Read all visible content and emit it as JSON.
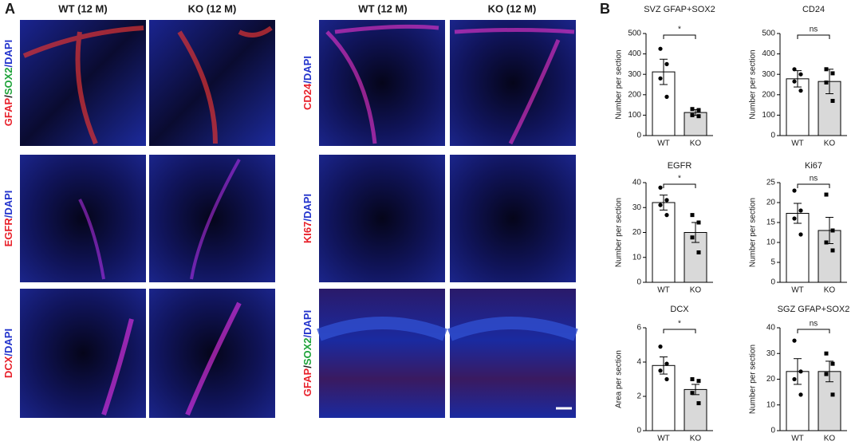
{
  "panel_a": {
    "label": "A",
    "left_headers": [
      "WT (12 M)",
      "KO (12 M)"
    ],
    "right_headers": [
      "WT (12 M)",
      "KO (12 M)"
    ],
    "left_rows": [
      [
        {
          "text": "GFAP",
          "color": "#e8202a"
        },
        {
          "text": "/",
          "color": "#1a1a1a"
        },
        {
          "text": "SOX2",
          "color": "#1fa33a"
        },
        {
          "text": "/DAPI",
          "color": "#2233cc"
        }
      ],
      [
        {
          "text": "EGFR",
          "color": "#e8202a"
        },
        {
          "text": "/DAPI",
          "color": "#2233cc"
        }
      ],
      [
        {
          "text": "DCX",
          "color": "#e8202a"
        },
        {
          "text": "/DAPI",
          "color": "#2233cc"
        }
      ]
    ],
    "right_rows": [
      [
        {
          "text": "CD24",
          "color": "#e8202a"
        },
        {
          "text": "/DAPI",
          "color": "#2233cc"
        }
      ],
      [
        {
          "text": "KI67",
          "color": "#e8202a"
        },
        {
          "text": "/DAPI",
          "color": "#2233cc"
        }
      ],
      [
        {
          "text": "GFAP",
          "color": "#e8202a"
        },
        {
          "text": "/",
          "color": "#1a1a1a"
        },
        {
          "text": "SOX2",
          "color": "#1fa33a"
        },
        {
          "text": "/DAPI",
          "color": "#2233cc"
        }
      ]
    ]
  },
  "panel_b_label": "B",
  "chart_data": [
    {
      "type": "bar",
      "title": "SVZ GFAP+SOX2",
      "ylabel": "Number per section",
      "categories": [
        "WT",
        "KO"
      ],
      "values": [
        312,
        113
      ],
      "errors": [
        62,
        14
      ],
      "points": [
        [
          425,
          350,
          280,
          190
        ],
        [
          130,
          125,
          100,
          95
        ]
      ],
      "colors": [
        "#ffffff",
        "#d9d9d9"
      ],
      "ylim": [
        0,
        500
      ],
      "yticks": [
        0,
        100,
        200,
        300,
        400,
        500
      ],
      "annotation": "*"
    },
    {
      "type": "bar",
      "title": "CD24",
      "ylabel": "Number per section",
      "categories": [
        "WT",
        "KO"
      ],
      "values": [
        278,
        265
      ],
      "errors": [
        40,
        60
      ],
      "points": [
        [
          325,
          300,
          265,
          220
        ],
        [
          325,
          305,
          260,
          170
        ]
      ],
      "colors": [
        "#ffffff",
        "#d9d9d9"
      ],
      "ylim": [
        0,
        500
      ],
      "yticks": [
        0,
        100,
        200,
        300,
        400,
        500
      ],
      "annotation": "ns"
    },
    {
      "type": "bar",
      "title": "EGFR",
      "ylabel": "Number per section",
      "categories": [
        "WT",
        "KO"
      ],
      "values": [
        32,
        20
      ],
      "errors": [
        3,
        4
      ],
      "points": [
        [
          38,
          33,
          31,
          27
        ],
        [
          27,
          24,
          18,
          12
        ]
      ],
      "colors": [
        "#ffffff",
        "#d9d9d9"
      ],
      "ylim": [
        0,
        40
      ],
      "yticks": [
        0,
        10,
        20,
        30,
        40
      ],
      "annotation": "*"
    },
    {
      "type": "bar",
      "title": "Ki67",
      "ylabel": "Number per section",
      "categories": [
        "WT",
        "KO"
      ],
      "values": [
        17.3,
        13
      ],
      "errors": [
        2.5,
        3.3
      ],
      "points": [
        [
          23,
          18,
          16,
          12
        ],
        [
          22,
          13,
          10,
          8
        ]
      ],
      "colors": [
        "#ffffff",
        "#d9d9d9"
      ],
      "ylim": [
        0,
        25
      ],
      "yticks": [
        0,
        5,
        10,
        15,
        20,
        25
      ],
      "annotation": "ns"
    },
    {
      "type": "bar",
      "title": "DCX",
      "ylabel": "Area per section",
      "categories": [
        "WT",
        "KO"
      ],
      "values": [
        3.8,
        2.4
      ],
      "errors": [
        0.5,
        0.3
      ],
      "points": [
        [
          4.9,
          3.9,
          3.5,
          3.0
        ],
        [
          3.0,
          2.9,
          2.2,
          1.6
        ]
      ],
      "colors": [
        "#ffffff",
        "#d9d9d9"
      ],
      "ylim": [
        0,
        6
      ],
      "yticks": [
        0,
        2,
        4,
        6
      ],
      "annotation": "*"
    },
    {
      "type": "bar",
      "title": "SGZ GFAP+SOX2",
      "ylabel": "Number per section",
      "categories": [
        "WT",
        "KO"
      ],
      "values": [
        23,
        23
      ],
      "errors": [
        5,
        4
      ],
      "points": [
        [
          35,
          23,
          20,
          14
        ],
        [
          30,
          26,
          22,
          14
        ]
      ],
      "colors": [
        "#ffffff",
        "#d9d9d9"
      ],
      "ylim": [
        0,
        40
      ],
      "yticks": [
        0,
        10,
        20,
        30,
        40
      ],
      "annotation": "ns"
    }
  ]
}
